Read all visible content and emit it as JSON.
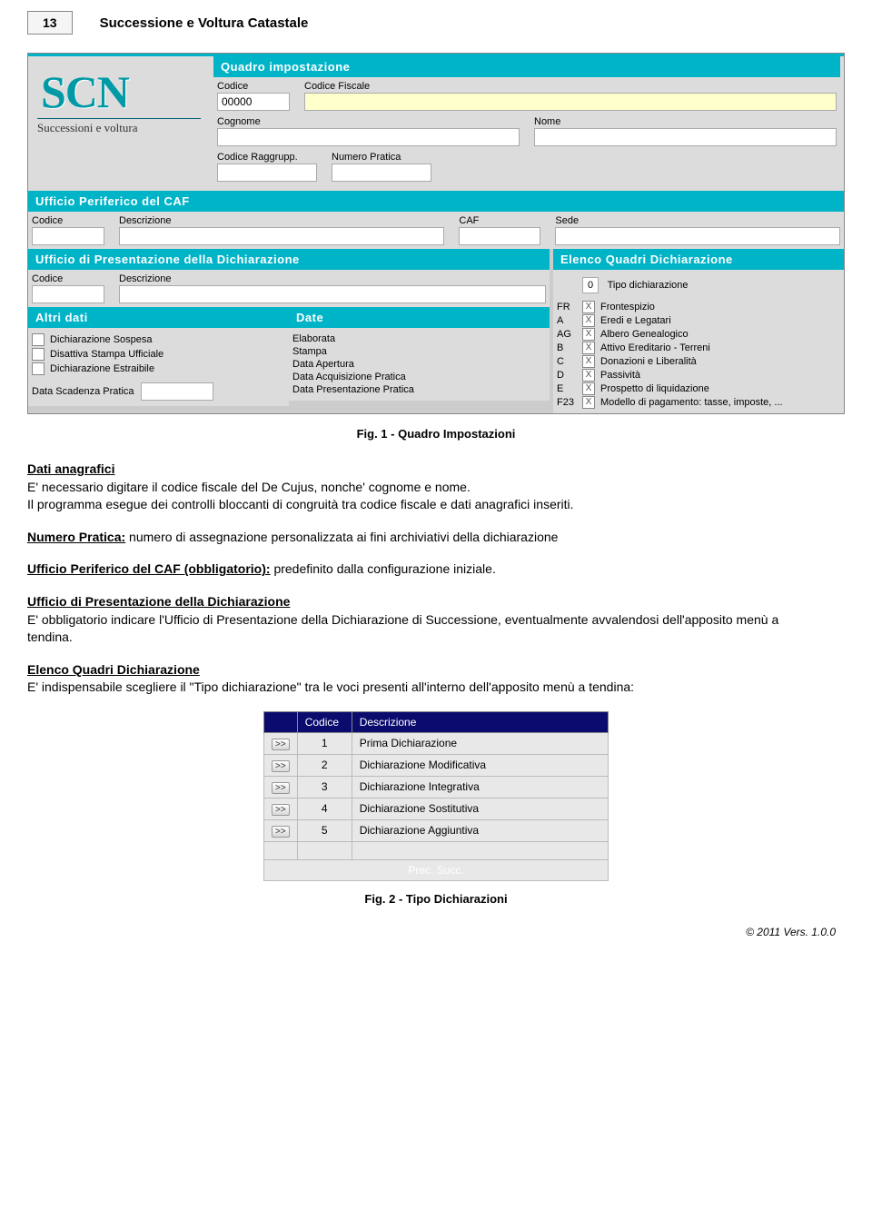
{
  "page_number": "13",
  "page_title": "Successione e Voltura Catastale",
  "app": {
    "logo_text": "SCN",
    "logo_tagline": "Successioni e voltura",
    "quadro_header": "Quadro impostazione",
    "codice_label": "Codice",
    "codice_value": "00000",
    "cf_label": "Codice Fiscale",
    "cognome_label": "Cognome",
    "nome_label": "Nome",
    "codragg_label": "Codice Raggrupp.",
    "numerop_label": "Numero Pratica",
    "ufficio_caf_header": "Ufficio Periferico del CAF",
    "caf_codice": "Codice",
    "caf_descr": "Descrizione",
    "caf_caf": "CAF",
    "caf_sede": "Sede",
    "pres_header": "Ufficio di Presentazione della Dichiarazione",
    "pres_codice": "Codice",
    "pres_descr": "Descrizione",
    "elenco_header": "Elenco Quadri Dichiarazione",
    "tipo_dich_val": "0",
    "tipo_dich_label": "Tipo dichiarazione",
    "quadri": [
      {
        "code": "FR",
        "label": "Frontespizio"
      },
      {
        "code": "A",
        "label": "Eredi e Legatari"
      },
      {
        "code": "AG",
        "label": "Albero Genealogico"
      },
      {
        "code": "B",
        "label": "Attivo Ereditario - Terreni"
      },
      {
        "code": "C",
        "label": "Donazioni e Liberalità"
      },
      {
        "code": "D",
        "label": "Passività"
      },
      {
        "code": "E",
        "label": "Prospetto di liquidazione"
      },
      {
        "code": "F23",
        "label": "Modello di pagamento: tasse, imposte, ..."
      }
    ],
    "altri_header": "Altri dati",
    "date_header": "Date",
    "altri_c1": "Dichiarazione Sospesa",
    "altri_c2": "Disattiva Stampa Ufficiale",
    "altri_c3": "Dichiarazione Estraibile",
    "data_scad": "Data Scadenza Pratica",
    "d1": "Elaborata",
    "d2": "Stampa",
    "d3": "Data Apertura",
    "d4": "Data Acquisizione Pratica",
    "d5": "Data Presentazione Pratica"
  },
  "caption1": "Fig. 1 - Quadro Impostazioni",
  "dati_ana_h": "Dati anagrafici",
  "dati_ana_p1": "E' necessario digitare il codice fiscale del De Cujus, nonche' cognome e nome.",
  "dati_ana_p2": "Il programma esegue dei controlli bloccanti di congruità tra codice fiscale e dati anagrafici inseriti.",
  "num_prat_h": "Numero Pratica:",
  "num_prat_t": " numero di assegnazione personalizzata ai fini archiviativi della dichiarazione",
  "uff_per_h": "Ufficio Periferico del CAF (obbligatorio):",
  "uff_per_t": " predefinito dalla configurazione iniziale.",
  "uff_pres_h": "Ufficio di Presentazione della Dichiarazione",
  "uff_pres_t": "E' obbligatorio indicare l'Ufficio di Presentazione della Dichiarazione di Successione, eventualmente avvalendosi dell'apposito menù a tendina.",
  "elenco_h": "Elenco Quadri Dichiarazione",
  "elenco_t": "E' indispensabile scegliere il \"Tipo dichiarazione\" tra le voci presenti all'interno dell'apposito menù a tendina:",
  "table2": {
    "h_blank": "",
    "h_codice": "Codice",
    "h_descr": "Descrizione",
    "rows": [
      {
        "c": "1",
        "d": "Prima Dichiarazione"
      },
      {
        "c": "2",
        "d": "Dichiarazione Modificativa"
      },
      {
        "c": "3",
        "d": "Dichiarazione Integrativa"
      },
      {
        "c": "4",
        "d": "Dichiarazione Sostitutiva"
      },
      {
        "c": "5",
        "d": "Dichiarazione Aggiuntiva"
      }
    ],
    "footer": "Prec. Succ."
  },
  "btn_label": ">>",
  "caption2": "Fig. 2 - Tipo Dichiarazioni",
  "footer": "© 2011 Vers. 1.0.0"
}
